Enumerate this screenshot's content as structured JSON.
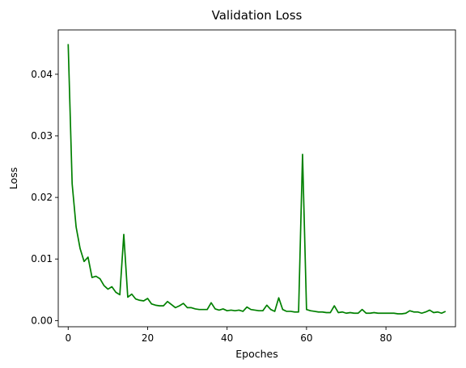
{
  "chart_data": {
    "type": "line",
    "title": "Validation Loss",
    "xlabel": "Epoches",
    "ylabel": "Loss",
    "xlim": [
      -2.5,
      97.5
    ],
    "ylim": [
      -0.001,
      0.0472
    ],
    "xticks": [
      0,
      20,
      40,
      60,
      80
    ],
    "xtick_labels": [
      "0",
      "20",
      "40",
      "60",
      "80"
    ],
    "yticks": [
      0,
      0.01,
      0.02,
      0.03,
      0.04
    ],
    "ytick_labels": [
      "0.00",
      "0.01",
      "0.02",
      "0.03",
      "0.04"
    ],
    "grid": false,
    "legend": "none",
    "series": [
      {
        "color": "#008000",
        "x": [
          0,
          1,
          2,
          3,
          4,
          5,
          6,
          7,
          8,
          9,
          10,
          11,
          12,
          13,
          14,
          15,
          16,
          17,
          18,
          19,
          20,
          21,
          22,
          23,
          24,
          25,
          26,
          27,
          28,
          29,
          30,
          31,
          32,
          33,
          34,
          35,
          36,
          37,
          38,
          39,
          40,
          41,
          42,
          43,
          44,
          45,
          46,
          47,
          48,
          49,
          50,
          51,
          52,
          53,
          54,
          55,
          56,
          57,
          58,
          59,
          60,
          61,
          62,
          63,
          64,
          65,
          66,
          67,
          68,
          69,
          70,
          71,
          72,
          73,
          74,
          75,
          76,
          77,
          78,
          79,
          80,
          81,
          82,
          83,
          84,
          85,
          86,
          87,
          88,
          89,
          90,
          91,
          92,
          93,
          94,
          95
        ],
        "y": [
          0.0449,
          0.0222,
          0.0152,
          0.0117,
          0.0096,
          0.0103,
          0.007,
          0.0072,
          0.0068,
          0.0057,
          0.0051,
          0.0055,
          0.0046,
          0.0042,
          0.014,
          0.0038,
          0.0043,
          0.0035,
          0.0033,
          0.0032,
          0.0036,
          0.0027,
          0.0025,
          0.0024,
          0.0024,
          0.0031,
          0.0026,
          0.0021,
          0.0024,
          0.0028,
          0.0021,
          0.0021,
          0.0019,
          0.0018,
          0.0018,
          0.0018,
          0.0029,
          0.0019,
          0.0017,
          0.0019,
          0.0016,
          0.0017,
          0.0016,
          0.0017,
          0.0015,
          0.0022,
          0.0018,
          0.0017,
          0.0016,
          0.0016,
          0.0025,
          0.0018,
          0.0015,
          0.0037,
          0.0018,
          0.0015,
          0.0015,
          0.0014,
          0.0014,
          0.027,
          0.0018,
          0.0016,
          0.0015,
          0.0014,
          0.0014,
          0.0013,
          0.0013,
          0.0024,
          0.0013,
          0.0014,
          0.0012,
          0.0013,
          0.0012,
          0.0012,
          0.0018,
          0.0012,
          0.0012,
          0.0013,
          0.0012,
          0.0012,
          0.0012,
          0.0012,
          0.0012,
          0.0011,
          0.0011,
          0.0012,
          0.0016,
          0.0014,
          0.0014,
          0.0012,
          0.0014,
          0.0017,
          0.0013,
          0.0014,
          0.0012,
          0.0015
        ]
      }
    ]
  }
}
